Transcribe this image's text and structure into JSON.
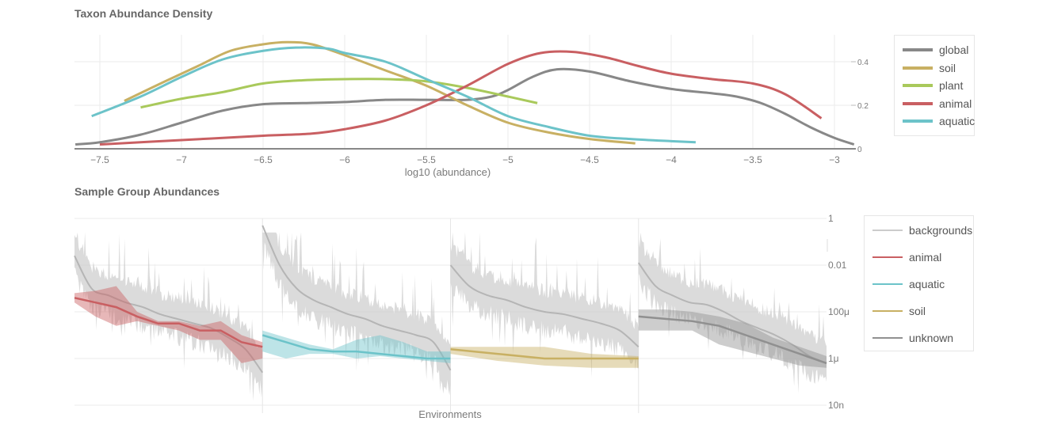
{
  "chart_data": [
    {
      "type": "line",
      "title": "Taxon Abundance Density",
      "xlabel": "log10 (abundance)",
      "ylabel": "",
      "xlim": [
        -7.65,
        -2.88
      ],
      "ylim": [
        0,
        0.52
      ],
      "x_ticks": [
        -7.5,
        -7,
        -6.5,
        -6,
        -5.5,
        -5,
        -4.5,
        -4,
        -3.5,
        -3
      ],
      "x_tick_labels": [
        "−7.5",
        "−7",
        "−6.5",
        "−6",
        "−5.5",
        "−5",
        "−4.5",
        "−4",
        "−3.5",
        "−3"
      ],
      "y_ticks": [
        0,
        0.2,
        0.4
      ],
      "y_tick_labels": [
        "0",
        "0.2",
        "0.4"
      ],
      "y_axis_side": "right",
      "grid": true,
      "legend_position": "right",
      "series": [
        {
          "name": "global",
          "color": "#888888",
          "x": [
            -7.65,
            -7.5,
            -7.25,
            -7,
            -6.75,
            -6.5,
            -6.25,
            -6,
            -5.75,
            -5.5,
            -5.25,
            -5.1,
            -5,
            -4.85,
            -4.7,
            -4.5,
            -4.25,
            -4,
            -3.75,
            -3.6,
            -3.45,
            -3.3,
            -3.15,
            -3,
            -2.88
          ],
          "y": [
            0.02,
            0.03,
            0.065,
            0.12,
            0.175,
            0.205,
            0.21,
            0.215,
            0.225,
            0.225,
            0.225,
            0.24,
            0.27,
            0.33,
            0.365,
            0.355,
            0.31,
            0.275,
            0.255,
            0.24,
            0.21,
            0.16,
            0.1,
            0.05,
            0.02
          ]
        },
        {
          "name": "soil",
          "color": "#c8b063",
          "x": [
            -7.35,
            -7.1,
            -6.9,
            -6.7,
            -6.5,
            -6.35,
            -6.2,
            -6,
            -5.75,
            -5.5,
            -5.25,
            -5,
            -4.75,
            -4.5,
            -4.22
          ],
          "y": [
            0.22,
            0.31,
            0.38,
            0.45,
            0.48,
            0.49,
            0.48,
            0.43,
            0.36,
            0.29,
            0.2,
            0.12,
            0.075,
            0.045,
            0.025
          ]
        },
        {
          "name": "plant",
          "color": "#a9c95b",
          "x": [
            -7.25,
            -7,
            -6.75,
            -6.5,
            -6.25,
            -6,
            -5.75,
            -5.5,
            -5.25,
            -5,
            -4.82
          ],
          "y": [
            0.19,
            0.23,
            0.26,
            0.3,
            0.315,
            0.32,
            0.32,
            0.31,
            0.28,
            0.24,
            0.21
          ]
        },
        {
          "name": "animal",
          "color": "#c95f62",
          "x": [
            -7.5,
            -7,
            -6.5,
            -6.2,
            -6,
            -5.75,
            -5.5,
            -5.25,
            -5,
            -4.8,
            -4.6,
            -4.4,
            -4.2,
            -4,
            -3.75,
            -3.5,
            -3.3,
            -3.08
          ],
          "y": [
            0.02,
            0.04,
            0.06,
            0.07,
            0.09,
            0.13,
            0.2,
            0.29,
            0.39,
            0.44,
            0.445,
            0.42,
            0.38,
            0.345,
            0.32,
            0.3,
            0.25,
            0.14
          ]
        },
        {
          "name": "aquatic",
          "color": "#6cc3c9",
          "x": [
            -7.55,
            -7.25,
            -7,
            -6.75,
            -6.5,
            -6.3,
            -6.1,
            -6,
            -5.75,
            -5.5,
            -5.25,
            -5,
            -4.75,
            -4.5,
            -4.25,
            -4,
            -3.85
          ],
          "y": [
            0.15,
            0.24,
            0.33,
            0.41,
            0.45,
            0.465,
            0.46,
            0.44,
            0.4,
            0.32,
            0.24,
            0.15,
            0.1,
            0.06,
            0.045,
            0.035,
            0.03
          ]
        }
      ]
    },
    {
      "type": "area",
      "title": "Sample Group Abundances",
      "xlabel": "Environments",
      "ylabel": "",
      "y_scale": "log",
      "ylim_log10": [
        -8,
        0
      ],
      "y_ticks_log10": [
        0,
        -2,
        -4,
        -6,
        -8
      ],
      "y_tick_labels": [
        "1",
        "0.01",
        "100μ",
        "1μ",
        "10n"
      ],
      "y_axis_side": "right",
      "grid": true,
      "legend_position": "right",
      "panels": [
        {
          "group": "animal",
          "color": "#c95f62",
          "background_median_log10": [
            -1.6,
            -3.0,
            -3.3,
            -3.6,
            -3.8,
            -4.1,
            -4.3,
            -4.5,
            -4.7,
            -5.1,
            -5.6,
            -6.6
          ],
          "median_log10": [
            -3.4,
            -3.6,
            -3.8,
            -4.2,
            -4.5,
            -4.5,
            -4.8,
            -4.8,
            -5.3,
            -5.5
          ],
          "lower_log10": [
            -3.6,
            -4.2,
            -4.6,
            -4.4,
            -4.6,
            -4.8,
            -5.2,
            -5.2,
            -6.2,
            -6.0
          ],
          "upper_log10": [
            -3.2,
            -3.1,
            -2.9,
            -4.0,
            -4.4,
            -4.4,
            -4.6,
            -4.4,
            -5.0,
            -5.3
          ]
        },
        {
          "group": "aquatic",
          "color": "#6cc3c9",
          "background_median_log10": [
            -0.3,
            -2.0,
            -3.0,
            -3.5,
            -3.8,
            -4.1,
            -4.3,
            -4.6,
            -4.8,
            -5.0,
            -5.3,
            -6.5
          ],
          "median_log10": [
            -5.0,
            -5.3,
            -5.6,
            -5.7,
            -5.7,
            -5.8,
            -5.9,
            -6.0,
            -6.0
          ],
          "lower_log10": [
            -5.7,
            -6.0,
            -5.8,
            -5.8,
            -6.0,
            -5.9,
            -6.0,
            -6.1,
            -6.2
          ],
          "upper_log10": [
            -4.8,
            -5.1,
            -5.4,
            -5.6,
            -5.2,
            -5.0,
            -5.3,
            -5.7,
            -5.7
          ]
        },
        {
          "group": "soil",
          "color": "#c8b063",
          "background_median_log10": [
            -2.0,
            -2.9,
            -3.3,
            -3.5,
            -3.8,
            -4.0,
            -4.1,
            -4.3,
            -4.5,
            -4.8,
            -5.5
          ],
          "median_log10": [
            -5.6,
            -5.8,
            -6.0,
            -6.0,
            -6.0
          ],
          "lower_log10": [
            -5.8,
            -6.1,
            -6.3,
            -6.4,
            -6.4
          ],
          "upper_log10": [
            -5.5,
            -5.5,
            -5.5,
            -5.8,
            -5.9
          ]
        },
        {
          "group": "unknown",
          "color": "#909090",
          "background_median_log10": [
            -1.9,
            -2.9,
            -3.3,
            -3.6,
            -3.7,
            -4.0,
            -4.4,
            -4.7,
            -5.0,
            -5.4,
            -5.9,
            -6.2
          ],
          "median_log10": [
            -4.2,
            -4.3,
            -4.4,
            -4.6,
            -5.0,
            -5.4,
            -5.8,
            -6.2
          ],
          "lower_log10": [
            -4.8,
            -4.8,
            -4.8,
            -5.4,
            -5.7,
            -6.0,
            -6.3,
            -6.4
          ],
          "upper_log10": [
            -3.9,
            -3.9,
            -4.0,
            -4.2,
            -4.5,
            -5.1,
            -5.5,
            -5.9
          ]
        }
      ],
      "legend": [
        {
          "name": "backgrounds",
          "color": "#cccccc"
        },
        {
          "name": "animal",
          "color": "#c95f62"
        },
        {
          "name": "aquatic",
          "color": "#6cc3c9"
        },
        {
          "name": "soil",
          "color": "#c8b063"
        },
        {
          "name": "unknown",
          "color": "#909090"
        }
      ]
    }
  ]
}
